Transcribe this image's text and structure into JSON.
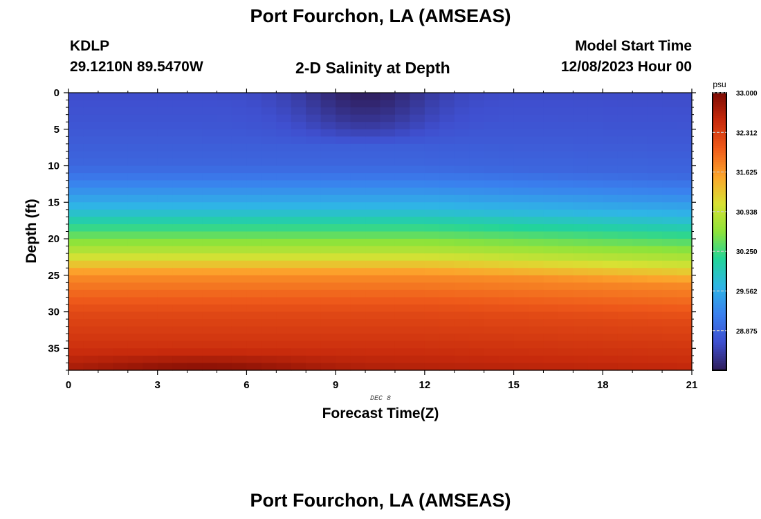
{
  "header": {
    "title": "Port Fourchon, LA (AMSEAS)",
    "station_id": "KDLP",
    "station_coords": "29.1210N  89.5470W",
    "subtitle": "2-D Salinity at Depth",
    "start_label": "Model Start Time",
    "start_value": "12/08/2023 Hour 00"
  },
  "footer": {
    "repeated_title": "Port Fourchon, LA (AMSEAS)"
  },
  "chart_data": {
    "type": "heatmap",
    "xlabel": "Forecast Time(Z)",
    "ylabel": "Depth (ft)",
    "date_annotation": "DEC 8",
    "xlim": [
      0,
      21
    ],
    "ylim": [
      0,
      38
    ],
    "y_inverted": true,
    "x_ticks": [
      0,
      3,
      6,
      9,
      12,
      15,
      18,
      21
    ],
    "y_ticks": [
      0,
      5,
      10,
      15,
      20,
      25,
      30,
      35
    ],
    "colorbar": {
      "unit": "psu",
      "min": 28.188,
      "max": 33.0,
      "tick_labels": [
        "33.000",
        "32.312",
        "31.625",
        "30.938",
        "30.250",
        "29.562",
        "28.875"
      ],
      "tick_values": [
        33.0,
        32.312,
        31.625,
        30.938,
        30.25,
        29.562,
        28.875
      ]
    },
    "colors": {
      "scale": [
        "#2f1d5a",
        "#3f4fcf",
        "#3a7fee",
        "#2fb5e6",
        "#22d49a",
        "#8ee33a",
        "#d9e133",
        "#fca32b",
        "#ef5a1a",
        "#c72a0c",
        "#7c0b04"
      ]
    },
    "profile_description_psu": [
      {
        "depth": 0,
        "salinity": 28.65
      },
      {
        "depth": 5,
        "salinity": 28.75
      },
      {
        "depth": 10,
        "salinity": 28.9
      },
      {
        "depth": 13,
        "salinity": 29.25
      },
      {
        "depth": 16,
        "salinity": 29.7
      },
      {
        "depth": 19,
        "salinity": 30.3
      },
      {
        "depth": 22,
        "salinity": 30.9
      },
      {
        "depth": 25,
        "salinity": 31.7
      },
      {
        "depth": 30,
        "salinity": 32.2
      },
      {
        "depth": 35,
        "salinity": 32.45
      },
      {
        "depth": 38,
        "salinity": 32.65
      }
    ],
    "freshwater_lens": {
      "center_hour": 10,
      "max_depth": 7,
      "min_salinity": 28.2
    },
    "deep_maximum": {
      "center_hour": 4.5,
      "depth": 38,
      "max_salinity": 32.95
    }
  }
}
